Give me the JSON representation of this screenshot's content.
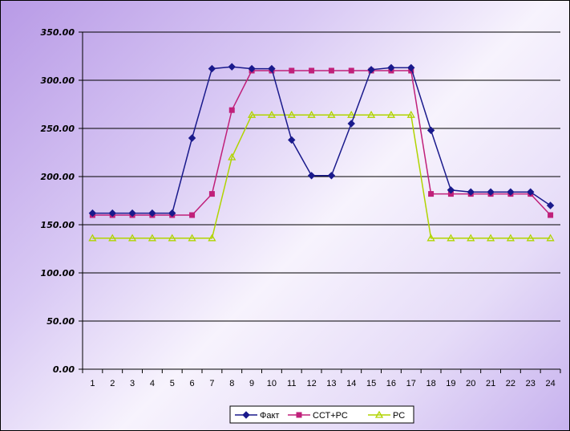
{
  "chart_data": {
    "type": "line",
    "title": "",
    "xlabel": "",
    "ylabel": "",
    "x": [
      1,
      2,
      3,
      4,
      5,
      6,
      7,
      8,
      9,
      10,
      11,
      12,
      13,
      14,
      15,
      16,
      17,
      18,
      19,
      20,
      21,
      22,
      23,
      24
    ],
    "x_labels": [
      "1",
      "2",
      "3",
      "4",
      "5",
      "6",
      "7",
      "8",
      "9",
      "10",
      "11",
      "12",
      "13",
      "14",
      "15",
      "16",
      "17",
      "18",
      "19",
      "20",
      "21",
      "22",
      "23",
      "24"
    ],
    "ylim": [
      0,
      350
    ],
    "y_ticks": [
      0,
      50,
      100,
      150,
      200,
      250,
      300,
      350
    ],
    "y_tick_labels": [
      "0.00",
      "50.00",
      "100.00",
      "150.00",
      "200.00",
      "250.00",
      "300.00",
      "350.00"
    ],
    "grid": "horizontal",
    "legend_position": "bottom",
    "series": [
      {
        "name": "Факт",
        "color": "#1a1a8c",
        "marker": "diamond",
        "values": [
          162,
          162,
          162,
          162,
          162,
          240,
          312,
          314,
          312,
          312,
          238,
          201,
          201,
          255,
          311,
          313,
          313,
          248,
          186,
          184,
          184,
          184,
          184,
          170
        ]
      },
      {
        "name": "ССТ+РС",
        "color": "#c0207a",
        "marker": "square",
        "values": [
          160,
          160,
          160,
          160,
          160,
          160,
          182,
          269,
          310,
          310,
          310,
          310,
          310,
          310,
          310,
          310,
          310,
          182,
          182,
          182,
          182,
          182,
          182,
          160
        ]
      },
      {
        "name": "РС",
        "color": "#b0d400",
        "marker": "triangle",
        "values": [
          136,
          136,
          136,
          136,
          136,
          136,
          136,
          220,
          264,
          264,
          264,
          264,
          264,
          264,
          264,
          264,
          264,
          136,
          136,
          136,
          136,
          136,
          136,
          136
        ]
      }
    ]
  }
}
